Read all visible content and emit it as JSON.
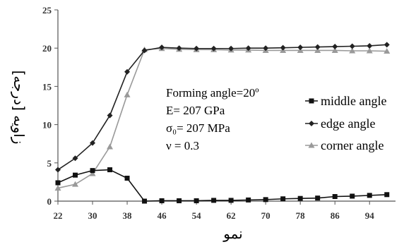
{
  "chart_data": {
    "type": "line",
    "xlabel": "نمو",
    "ylabel": "زاويه [درجه]",
    "xlim": [
      22,
      100
    ],
    "ylim": [
      0,
      25
    ],
    "x_ticks": [
      "22",
      "30",
      "38",
      "46",
      "54",
      "62",
      "70",
      "78",
      "86",
      "94"
    ],
    "y_ticks": [
      "0",
      "5",
      "10",
      "15",
      "20",
      "25"
    ],
    "annotation_lines": [
      "Forming angle=20º",
      "E= 207 GPa",
      "σ₀= 207 MPa",
      "ν = 0.3"
    ],
    "legend_position": "center-right",
    "series": [
      {
        "name": "middle angle",
        "marker": "square",
        "color": "#111111",
        "x": [
          22,
          26,
          30,
          34,
          38,
          42,
          46,
          50,
          54,
          58,
          62,
          66,
          70,
          74,
          78,
          82,
          86,
          90,
          94,
          98
        ],
        "y": [
          2.4,
          3.4,
          4.0,
          4.1,
          3.0,
          0.0,
          0.05,
          0.05,
          0.05,
          0.1,
          0.1,
          0.15,
          0.2,
          0.3,
          0.35,
          0.4,
          0.6,
          0.65,
          0.75,
          0.85
        ]
      },
      {
        "name": "edge angle",
        "marker": "diamond",
        "color": "#222222",
        "x": [
          22,
          26,
          30,
          34,
          38,
          42,
          46,
          50,
          54,
          58,
          62,
          66,
          70,
          74,
          78,
          82,
          86,
          90,
          94,
          98
        ],
        "y": [
          4.1,
          5.6,
          7.6,
          11.2,
          16.9,
          19.7,
          20.1,
          20.0,
          19.95,
          19.95,
          19.95,
          20.0,
          20.0,
          20.05,
          20.1,
          20.15,
          20.2,
          20.25,
          20.3,
          20.45
        ]
      },
      {
        "name": "corner angle",
        "marker": "triangle",
        "color": "#9a9a9a",
        "x": [
          22,
          26,
          30,
          34,
          38,
          42,
          46,
          50,
          54,
          58,
          62,
          66,
          70,
          74,
          78,
          82,
          86,
          90,
          94,
          98
        ],
        "y": [
          1.7,
          2.2,
          3.6,
          7.1,
          13.9,
          19.8,
          19.95,
          19.85,
          19.8,
          19.8,
          19.75,
          19.75,
          19.7,
          19.7,
          19.7,
          19.7,
          19.7,
          19.65,
          19.65,
          19.6
        ]
      }
    ]
  }
}
